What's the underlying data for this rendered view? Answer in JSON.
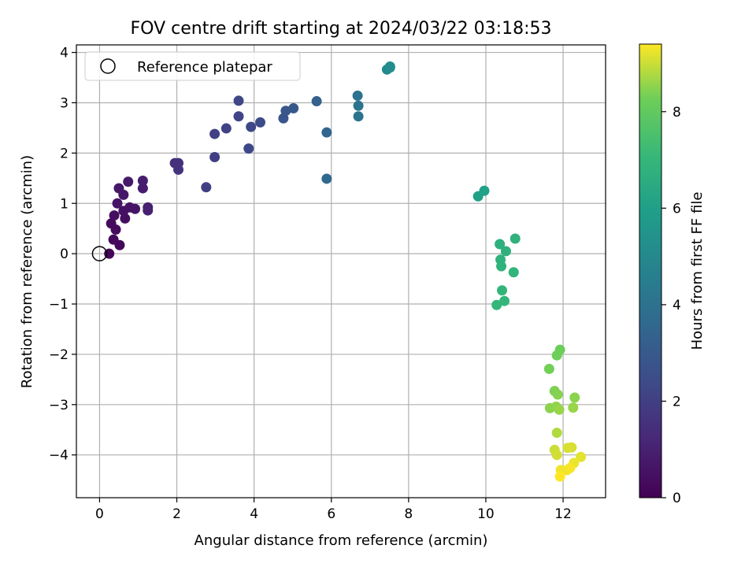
{
  "chart_data": {
    "type": "scatter",
    "title": "FOV centre drift starting at 2024/03/22 03:18:53",
    "xlabel": "Angular distance from reference (arcmin)",
    "ylabel": "Rotation from reference (arcmin)",
    "xlim": [
      -0.6,
      13.1
    ],
    "ylim": [
      -4.85,
      4.15
    ],
    "x_ticks": [
      0,
      2,
      4,
      6,
      8,
      10,
      12
    ],
    "y_ticks": [
      -4,
      -3,
      -2,
      -1,
      0,
      1,
      2,
      3,
      4
    ],
    "grid": true,
    "legend": {
      "placement": "upper-left",
      "entries": [
        "Reference platepar"
      ]
    },
    "reference_point": {
      "x": 0,
      "y": 0
    },
    "colorbar": {
      "label": "Hours from first FF file",
      "range": [
        0,
        9.4
      ],
      "ticks": [
        0,
        2,
        4,
        6,
        8
      ],
      "colormap": "viridis"
    },
    "points": [
      {
        "x": 0.25,
        "y": 0.0,
        "h": 0.1
      },
      {
        "x": 0.52,
        "y": 0.17,
        "h": 0.2
      },
      {
        "x": 0.36,
        "y": 0.28,
        "h": 0.25
      },
      {
        "x": 0.42,
        "y": 0.48,
        "h": 0.3
      },
      {
        "x": 0.3,
        "y": 0.6,
        "h": 0.35
      },
      {
        "x": 0.38,
        "y": 0.76,
        "h": 0.4
      },
      {
        "x": 0.66,
        "y": 0.7,
        "h": 0.45
      },
      {
        "x": 0.62,
        "y": 0.85,
        "h": 0.5
      },
      {
        "x": 0.78,
        "y": 0.92,
        "h": 0.55
      },
      {
        "x": 0.92,
        "y": 0.89,
        "h": 0.6
      },
      {
        "x": 0.46,
        "y": 1.0,
        "h": 0.6
      },
      {
        "x": 0.62,
        "y": 1.17,
        "h": 0.65
      },
      {
        "x": 0.5,
        "y": 1.3,
        "h": 0.7
      },
      {
        "x": 0.74,
        "y": 1.43,
        "h": 0.75
      },
      {
        "x": 1.12,
        "y": 1.3,
        "h": 0.85
      },
      {
        "x": 1.12,
        "y": 1.45,
        "h": 0.9
      },
      {
        "x": 1.25,
        "y": 0.92,
        "h": 0.95
      },
      {
        "x": 1.25,
        "y": 0.86,
        "h": 1.0
      },
      {
        "x": 1.95,
        "y": 1.8,
        "h": 1.5
      },
      {
        "x": 2.04,
        "y": 1.8,
        "h": 1.55
      },
      {
        "x": 2.04,
        "y": 1.67,
        "h": 1.6
      },
      {
        "x": 2.76,
        "y": 1.32,
        "h": 2.0
      },
      {
        "x": 2.98,
        "y": 1.92,
        "h": 2.0
      },
      {
        "x": 2.98,
        "y": 2.38,
        "h": 2.05
      },
      {
        "x": 3.28,
        "y": 2.49,
        "h": 2.1
      },
      {
        "x": 3.6,
        "y": 2.73,
        "h": 2.2
      },
      {
        "x": 3.6,
        "y": 3.04,
        "h": 2.25
      },
      {
        "x": 3.86,
        "y": 2.09,
        "h": 2.3
      },
      {
        "x": 3.92,
        "y": 2.52,
        "h": 2.3
      },
      {
        "x": 4.16,
        "y": 2.61,
        "h": 2.4
      },
      {
        "x": 4.76,
        "y": 2.69,
        "h": 2.8
      },
      {
        "x": 4.82,
        "y": 2.84,
        "h": 2.85
      },
      {
        "x": 5.02,
        "y": 2.89,
        "h": 2.9
      },
      {
        "x": 5.62,
        "y": 3.03,
        "h": 3.3
      },
      {
        "x": 5.88,
        "y": 2.41,
        "h": 3.5
      },
      {
        "x": 5.88,
        "y": 1.49,
        "h": 3.6
      },
      {
        "x": 6.68,
        "y": 3.14,
        "h": 4.0
      },
      {
        "x": 6.7,
        "y": 2.94,
        "h": 4.05
      },
      {
        "x": 6.7,
        "y": 2.73,
        "h": 4.1
      },
      {
        "x": 7.44,
        "y": 3.66,
        "h": 5.0
      },
      {
        "x": 7.52,
        "y": 3.72,
        "h": 5.1
      },
      {
        "x": 7.52,
        "y": 3.7,
        "h": 5.15
      },
      {
        "x": 9.8,
        "y": 1.14,
        "h": 6.0
      },
      {
        "x": 9.96,
        "y": 1.25,
        "h": 6.05
      },
      {
        "x": 10.36,
        "y": 0.19,
        "h": 6.7
      },
      {
        "x": 10.52,
        "y": 0.05,
        "h": 6.75
      },
      {
        "x": 10.76,
        "y": 0.3,
        "h": 6.8
      },
      {
        "x": 10.38,
        "y": -0.12,
        "h": 6.8
      },
      {
        "x": 10.4,
        "y": -0.25,
        "h": 6.85
      },
      {
        "x": 10.72,
        "y": -0.37,
        "h": 6.9
      },
      {
        "x": 10.42,
        "y": -0.73,
        "h": 6.95
      },
      {
        "x": 10.48,
        "y": -0.94,
        "h": 7.0
      },
      {
        "x": 10.28,
        "y": -1.02,
        "h": 7.0
      },
      {
        "x": 11.92,
        "y": -1.91,
        "h": 8.2
      },
      {
        "x": 11.84,
        "y": -2.02,
        "h": 8.25
      },
      {
        "x": 11.64,
        "y": -2.29,
        "h": 8.3
      },
      {
        "x": 11.78,
        "y": -2.73,
        "h": 8.4
      },
      {
        "x": 11.86,
        "y": -2.8,
        "h": 8.45
      },
      {
        "x": 12.3,
        "y": -2.86,
        "h": 8.5
      },
      {
        "x": 11.66,
        "y": -3.07,
        "h": 8.5
      },
      {
        "x": 11.82,
        "y": -3.04,
        "h": 8.55
      },
      {
        "x": 11.9,
        "y": -3.1,
        "h": 8.6
      },
      {
        "x": 12.26,
        "y": -3.06,
        "h": 8.6
      },
      {
        "x": 11.84,
        "y": -3.56,
        "h": 8.8
      },
      {
        "x": 11.78,
        "y": -3.9,
        "h": 9.0
      },
      {
        "x": 11.84,
        "y": -4.0,
        "h": 9.05
      },
      {
        "x": 12.12,
        "y": -3.86,
        "h": 9.1
      },
      {
        "x": 12.22,
        "y": -3.85,
        "h": 9.1
      },
      {
        "x": 12.46,
        "y": -4.04,
        "h": 9.2
      },
      {
        "x": 12.28,
        "y": -4.16,
        "h": 9.25
      },
      {
        "x": 11.94,
        "y": -4.3,
        "h": 9.3
      },
      {
        "x": 12.1,
        "y": -4.3,
        "h": 9.3
      },
      {
        "x": 12.18,
        "y": -4.26,
        "h": 9.35
      },
      {
        "x": 11.92,
        "y": -4.43,
        "h": 9.4
      }
    ]
  }
}
